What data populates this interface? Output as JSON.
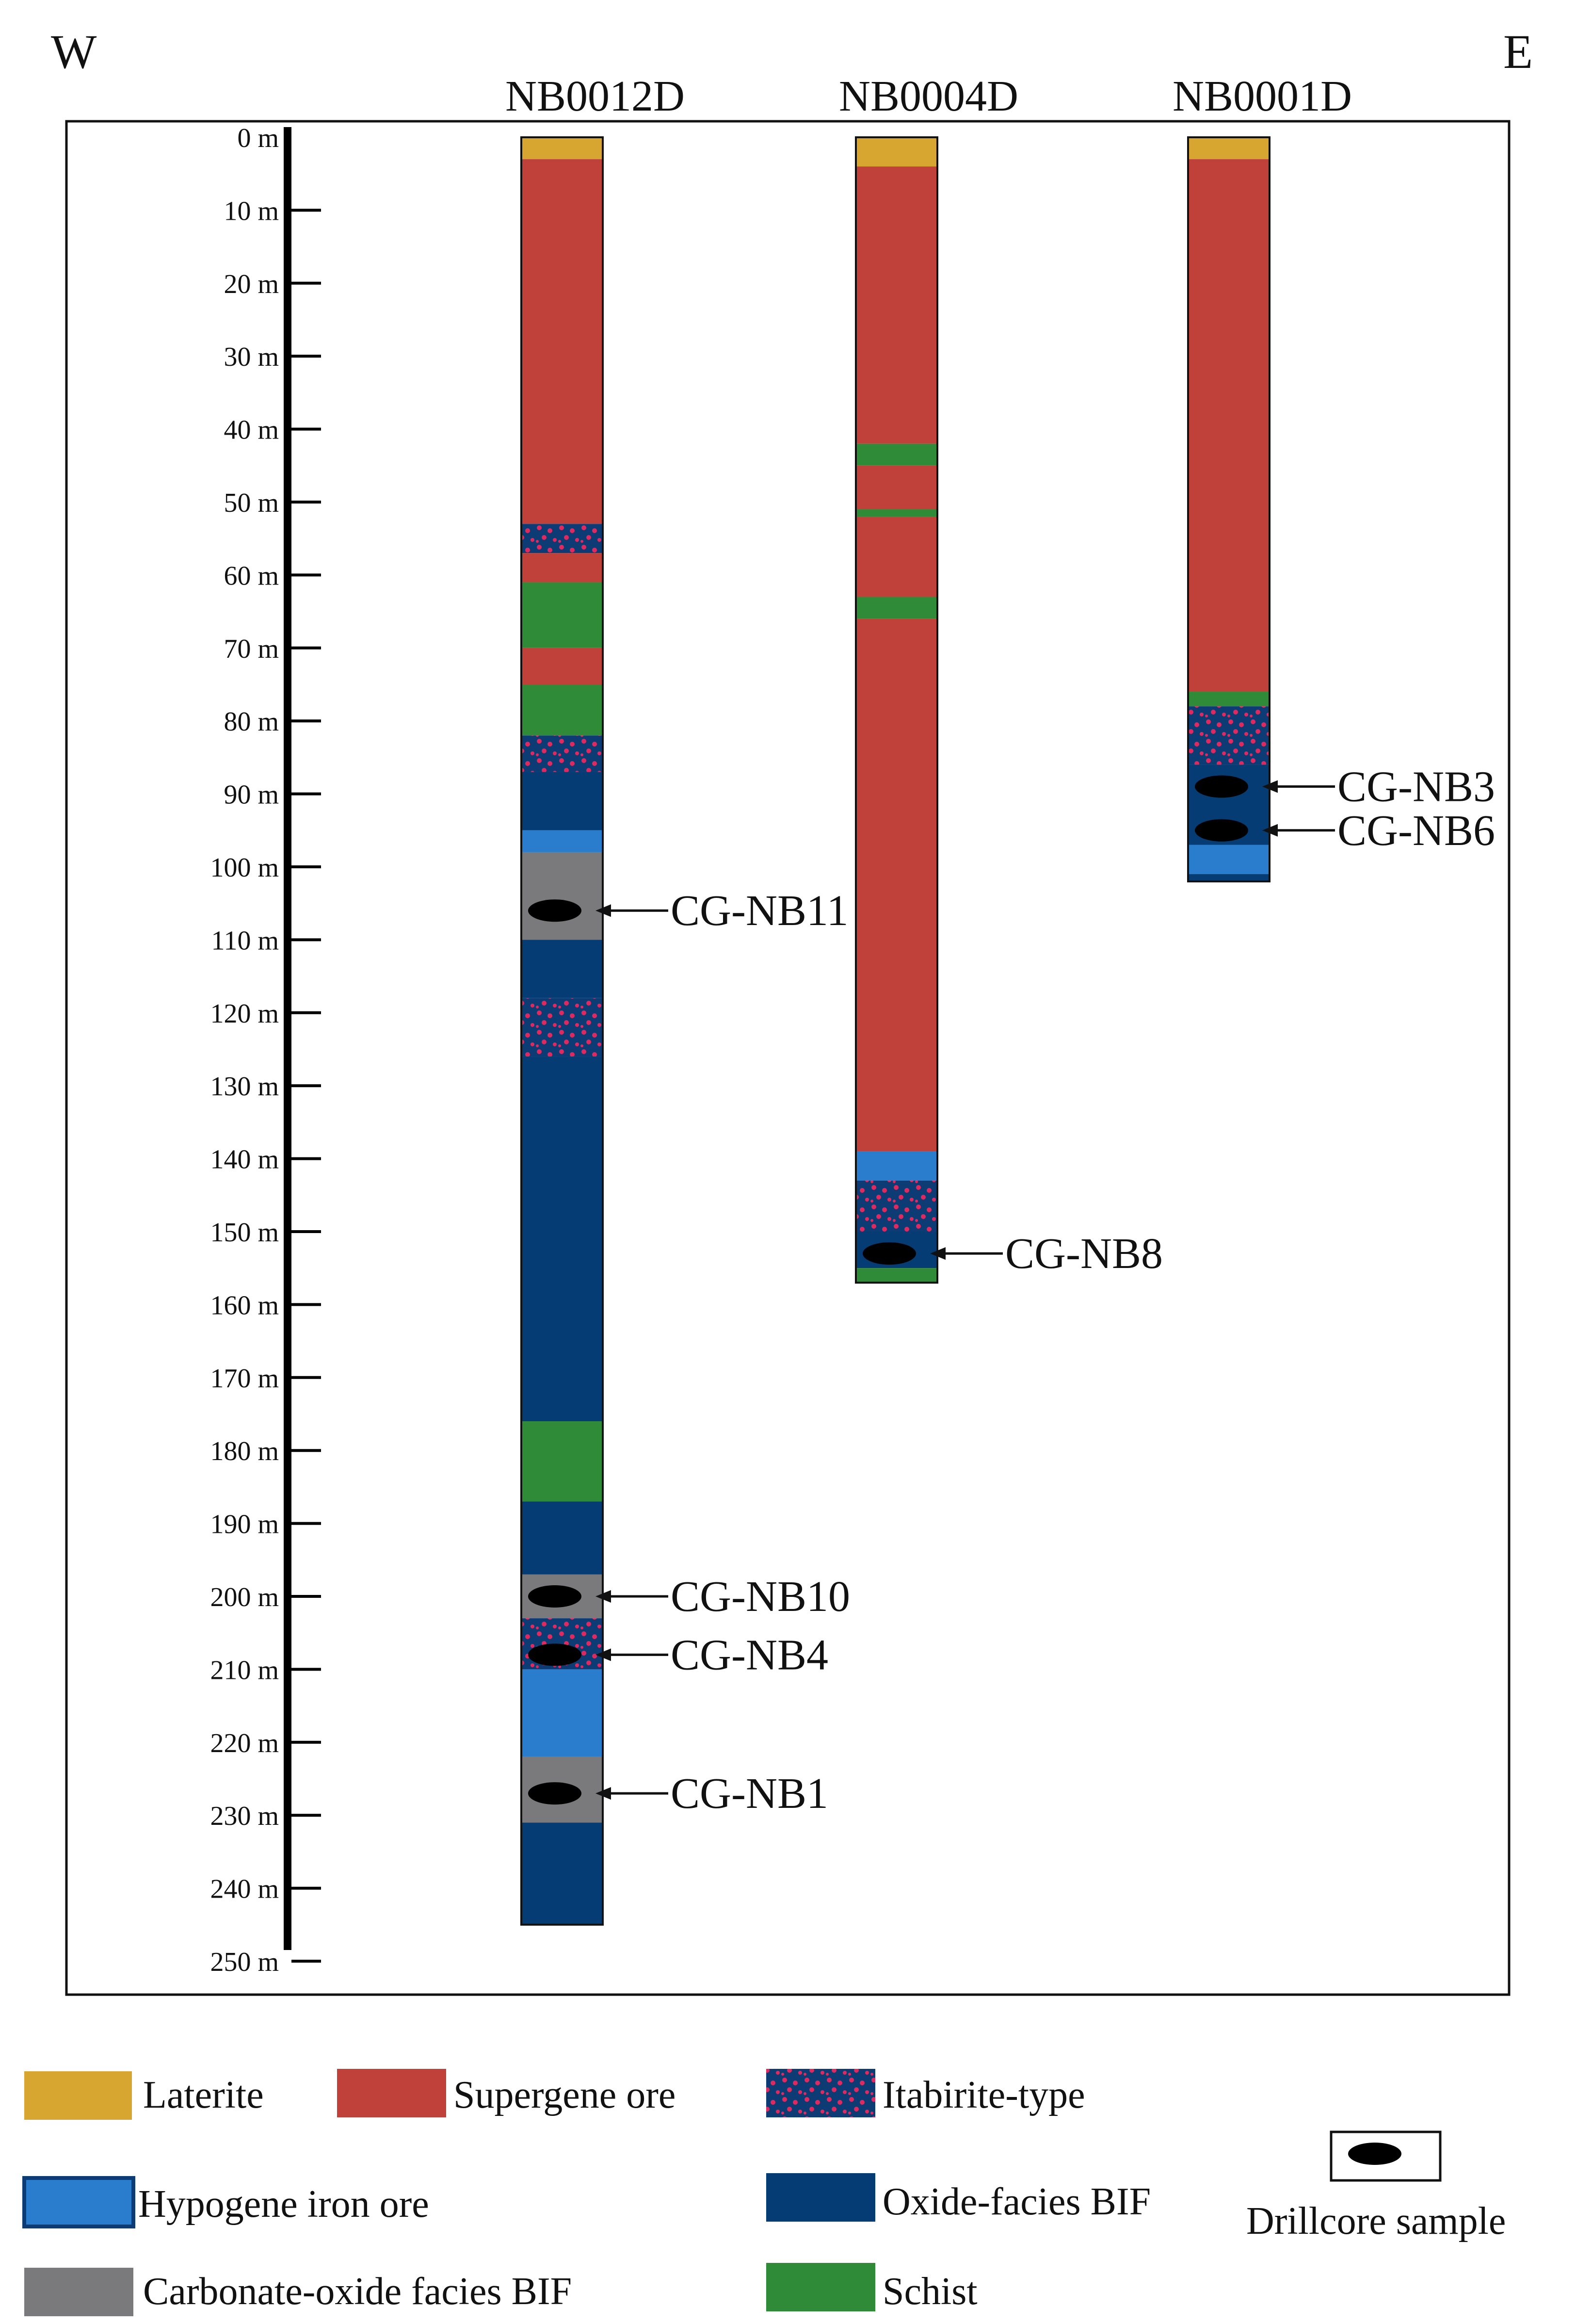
{
  "compass": {
    "west": "W",
    "east": "E"
  },
  "depth_scale": {
    "labels": [
      "0 m",
      "10 m",
      "20 m",
      "30 m",
      "40 m",
      "50 m",
      "60 m",
      "70 m",
      "80 m",
      "90 m",
      "100 m",
      "110 m",
      "120 m",
      "130 m",
      "140 m",
      "150 m",
      "160 m",
      "170 m",
      "180 m",
      "190 m",
      "200 m",
      "210 m",
      "220 m",
      "230 m",
      "240 m",
      "250 m"
    ],
    "min_m": 0,
    "max_m": 250,
    "step_m": 10
  },
  "colors": {
    "laterite": "#d6a631",
    "supergene": "#c0403a",
    "itabirite_bg": "#0d3b74",
    "itabirite_dot": "#e0295f",
    "hypogene": "#2a7ccc",
    "oxide": "#053c74",
    "carbonate": "#7a7a7c",
    "schist": "#2f8b37",
    "sample": "#000000"
  },
  "drillholes": [
    {
      "name": "NB0012D",
      "intervals": [
        {
          "from": 0,
          "to": 3,
          "lith": "laterite"
        },
        {
          "from": 3,
          "to": 53,
          "lith": "supergene"
        },
        {
          "from": 53,
          "to": 57,
          "lith": "itabirite"
        },
        {
          "from": 57,
          "to": 61,
          "lith": "supergene"
        },
        {
          "from": 61,
          "to": 70,
          "lith": "schist"
        },
        {
          "from": 70,
          "to": 75,
          "lith": "supergene"
        },
        {
          "from": 75,
          "to": 82,
          "lith": "schist"
        },
        {
          "from": 82,
          "to": 87,
          "lith": "itabirite"
        },
        {
          "from": 87,
          "to": 95,
          "lith": "oxide"
        },
        {
          "from": 95,
          "to": 98,
          "lith": "hypogene"
        },
        {
          "from": 98,
          "to": 110,
          "lith": "carbonate"
        },
        {
          "from": 110,
          "to": 118,
          "lith": "oxide"
        },
        {
          "from": 118,
          "to": 126,
          "lith": "itabirite"
        },
        {
          "from": 126,
          "to": 176,
          "lith": "oxide"
        },
        {
          "from": 176,
          "to": 187,
          "lith": "schist"
        },
        {
          "from": 187,
          "to": 197,
          "lith": "oxide"
        },
        {
          "from": 197,
          "to": 203,
          "lith": "carbonate"
        },
        {
          "from": 203,
          "to": 210,
          "lith": "itabirite"
        },
        {
          "from": 210,
          "to": 222,
          "lith": "hypogene"
        },
        {
          "from": 222,
          "to": 231,
          "lith": "carbonate"
        },
        {
          "from": 231,
          "to": 245,
          "lith": "oxide"
        }
      ],
      "samples": [
        {
          "label": "CG-NB11",
          "depth": 106
        },
        {
          "label": "CG-NB10",
          "depth": 200
        },
        {
          "label": "CG-NB4",
          "depth": 208
        },
        {
          "label": "CG-NB1",
          "depth": 227
        }
      ]
    },
    {
      "name": "NB0004D",
      "intervals": [
        {
          "from": 0,
          "to": 4,
          "lith": "laterite"
        },
        {
          "from": 4,
          "to": 42,
          "lith": "supergene"
        },
        {
          "from": 42,
          "to": 45,
          "lith": "schist"
        },
        {
          "from": 45,
          "to": 51,
          "lith": "supergene"
        },
        {
          "from": 51,
          "to": 52,
          "lith": "schist"
        },
        {
          "from": 52,
          "to": 63,
          "lith": "supergene"
        },
        {
          "from": 63,
          "to": 66,
          "lith": "schist"
        },
        {
          "from": 66,
          "to": 139,
          "lith": "supergene"
        },
        {
          "from": 139,
          "to": 143,
          "lith": "hypogene"
        },
        {
          "from": 143,
          "to": 150,
          "lith": "itabirite"
        },
        {
          "from": 150,
          "to": 155,
          "lith": "oxide"
        },
        {
          "from": 155,
          "to": 157,
          "lith": "schist"
        }
      ],
      "samples": [
        {
          "label": "CG-NB8",
          "depth": 153
        }
      ]
    },
    {
      "name": "NB0001D",
      "intervals": [
        {
          "from": 0,
          "to": 3,
          "lith": "laterite"
        },
        {
          "from": 3,
          "to": 76,
          "lith": "supergene"
        },
        {
          "from": 76,
          "to": 78,
          "lith": "schist"
        },
        {
          "from": 78,
          "to": 86,
          "lith": "itabirite"
        },
        {
          "from": 86,
          "to": 97,
          "lith": "oxide"
        },
        {
          "from": 97,
          "to": 101,
          "lith": "hypogene"
        },
        {
          "from": 101,
          "to": 102,
          "lith": "oxide"
        }
      ],
      "samples": [
        {
          "label": "CG-NB3",
          "depth": 89
        },
        {
          "label": "CG-NB6",
          "depth": 95
        }
      ]
    }
  ],
  "legend": {
    "laterite": "Laterite",
    "supergene": "Supergene ore",
    "itabirite": "Itabirite-type",
    "hypogene": "Hypogene iron ore",
    "oxide": "Oxide-facies BIF",
    "carbonate": "Carbonate-oxide facies BIF",
    "schist": "Schist",
    "sample": "Drillcore sample"
  }
}
